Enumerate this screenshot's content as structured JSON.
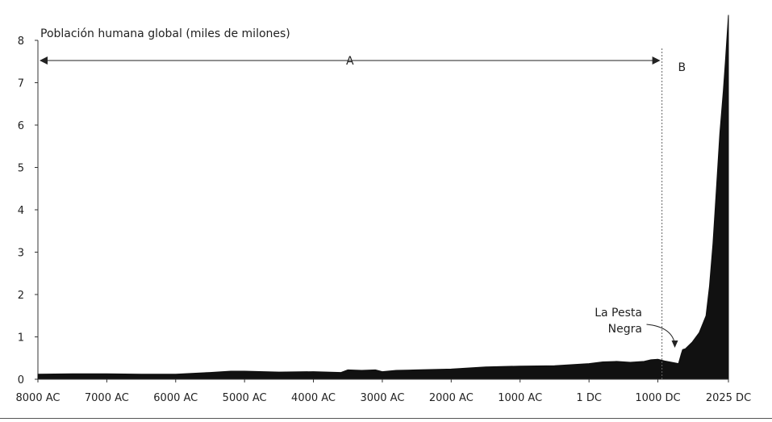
{
  "chart_data": {
    "type": "area",
    "title": "Población humana global (miles de milones)",
    "xlabel": "",
    "ylabel": "",
    "ylim": [
      0,
      8
    ],
    "xlim": [
      -8000,
      2025
    ],
    "grid": false,
    "yticks": [
      "0",
      "1",
      "2",
      "3",
      "4",
      "5",
      "6",
      "7",
      "8"
    ],
    "xticks": [
      {
        "value": -8000,
        "label": "8000 AC"
      },
      {
        "value": -7000,
        "label": "7000 AC"
      },
      {
        "value": -6000,
        "label": "6000 AC"
      },
      {
        "value": -5000,
        "label": "5000 AC"
      },
      {
        "value": -4000,
        "label": "4000 AC"
      },
      {
        "value": -3000,
        "label": "3000 AC"
      },
      {
        "value": -2000,
        "label": "2000 AC"
      },
      {
        "value": -1000,
        "label": "1000 AC"
      },
      {
        "value": 1,
        "label": "1 DC"
      },
      {
        "value": 1000,
        "label": "1000 DC"
      },
      {
        "value": 2025,
        "label": "2025 DC"
      }
    ],
    "series": [
      {
        "x": [
          -8000,
          -7500,
          -7000,
          -6500,
          -6000,
          -5500,
          -5200,
          -5000,
          -4500,
          -4000,
          -3600,
          -3500,
          -3300,
          -3100,
          -3000,
          -2800,
          -2500,
          -2000,
          -1500,
          -1000,
          -500,
          0,
          200,
          400,
          600,
          800,
          900,
          1000,
          1100,
          1200,
          1300,
          1340,
          1360,
          1400,
          1500,
          1600,
          1700,
          1750,
          1800,
          1850,
          1900,
          1950,
          1980,
          2000,
          2025
        ],
        "y": [
          0.12,
          0.13,
          0.13,
          0.12,
          0.12,
          0.16,
          0.19,
          0.19,
          0.17,
          0.18,
          0.16,
          0.22,
          0.21,
          0.22,
          0.18,
          0.21,
          0.22,
          0.24,
          0.29,
          0.31,
          0.32,
          0.37,
          0.41,
          0.42,
          0.4,
          0.42,
          0.46,
          0.47,
          0.43,
          0.4,
          0.37,
          0.6,
          0.7,
          0.72,
          0.88,
          1.1,
          1.5,
          2.2,
          3.2,
          4.5,
          5.8,
          6.8,
          7.5,
          8.0,
          8.6
        ]
      }
    ],
    "annotations": [
      {
        "text": "A",
        "x_from": -8000,
        "x_to": 1060
      },
      {
        "text": "B",
        "x": 1350
      },
      {
        "text": "La Pesta",
        "x": 1240,
        "y": 0.9
      },
      {
        "text": "Negra",
        "x": 1240,
        "y": 0.5
      }
    ]
  }
}
